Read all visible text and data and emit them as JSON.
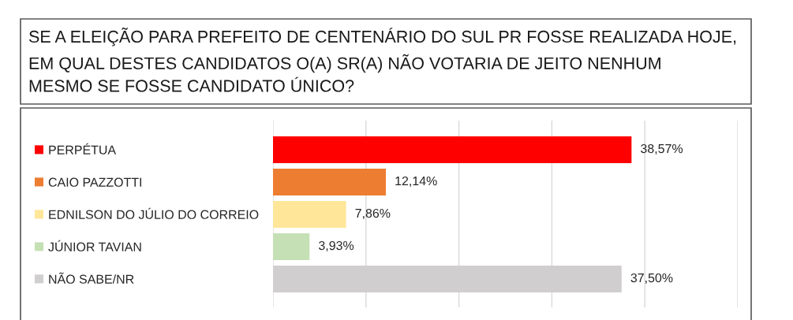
{
  "chart_data": {
    "type": "bar",
    "orientation": "horizontal",
    "title": "SE A ELEIÇÃO PARA PREFEITO DE CENTENÁRIO DO SUL PR FOSSE REALIZADA HOJE,\nEM QUAL DESTES CANDIDATOS O(A) SR(A) NÃO VOTARIA DE JEITO NENHUM\nMESMO SE FOSSE CANDIDATO ÚNICO?",
    "categories": [
      "PERPÉTUA",
      "CAIO PAZZOTTI",
      "EDNILSON DO JÚLIO DO CORREIO",
      "JÚNIOR TAVIAN",
      "NÃO SABE/NR"
    ],
    "values": [
      38.57,
      12.14,
      7.86,
      3.93,
      37.5
    ],
    "colors": [
      "#ff0000",
      "#ed7d31",
      "#ffe699",
      "#c5e0b4",
      "#d0cece"
    ],
    "value_labels": [
      "38,57%",
      "12,14%",
      "7,86%",
      "3,93%",
      "37,50%"
    ],
    "xlim": [
      0,
      50
    ],
    "xticks": [
      0,
      10,
      20,
      30,
      40,
      50
    ],
    "tick_labels": "y",
    "grid": "x"
  }
}
